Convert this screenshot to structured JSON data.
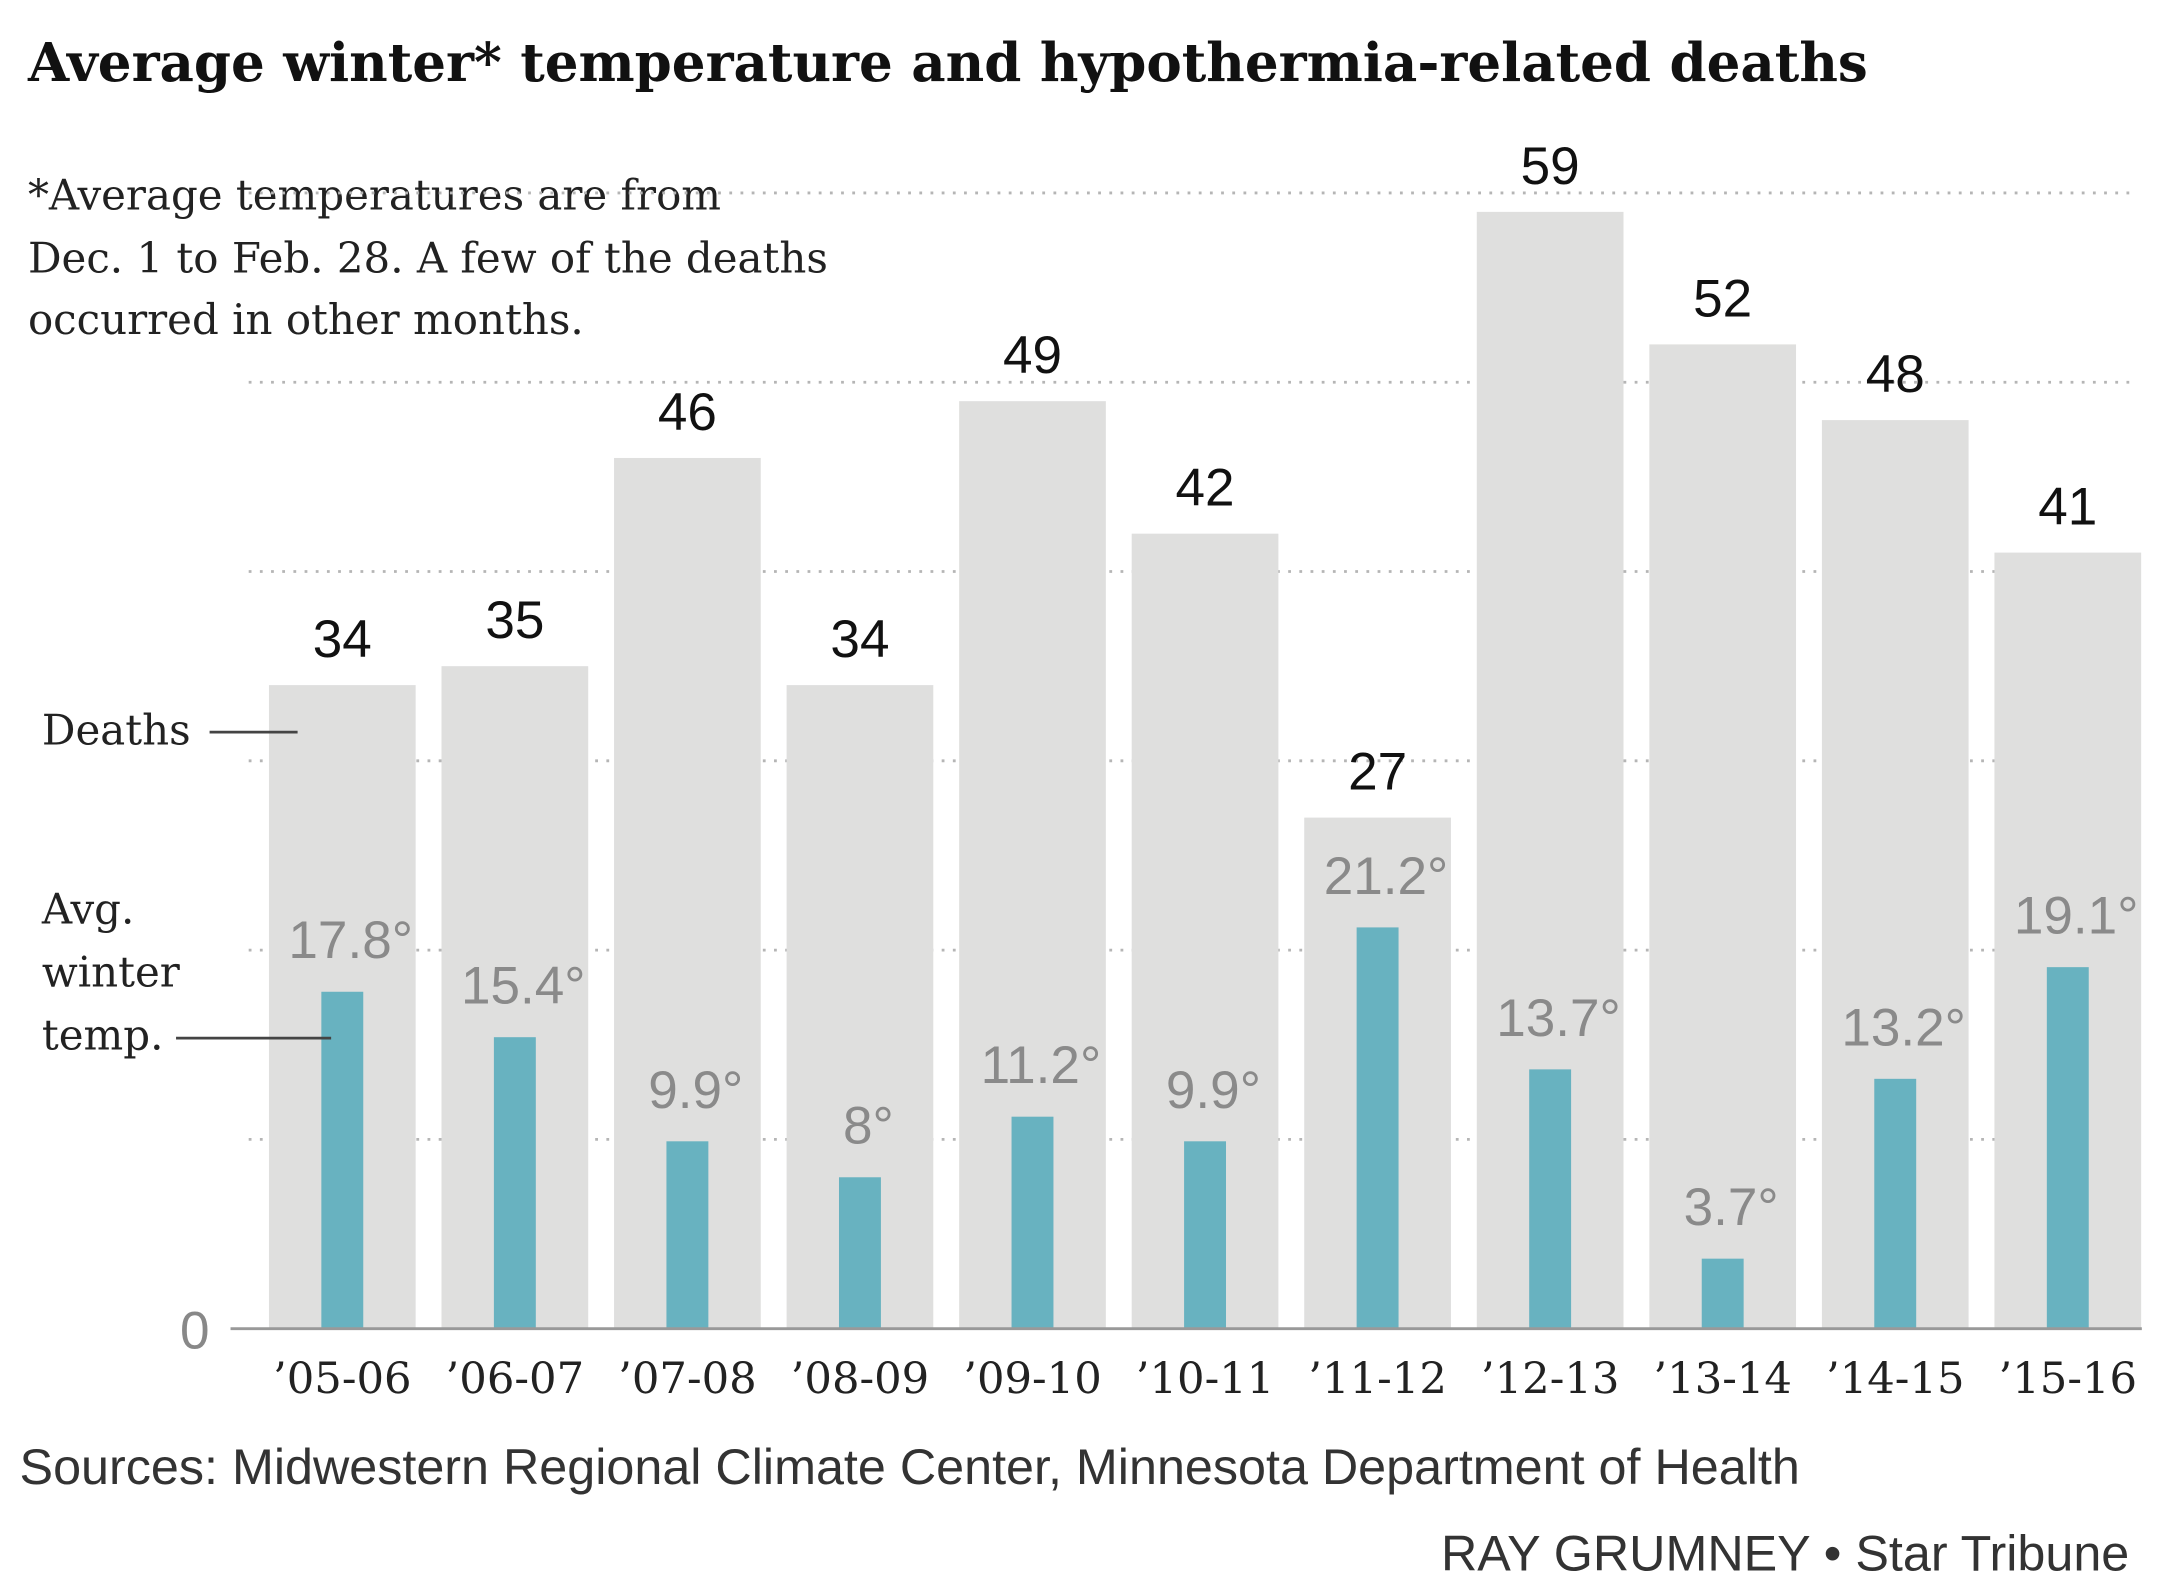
{
  "chart_data": {
    "type": "bar",
    "title": "Average winter* temperature and hypothermia-related deaths",
    "footnote": [
      "*Average temperatures are from",
      "Dec. 1 to Feb. 28. A few of the deaths",
      "occurred in other months."
    ],
    "source": "Sources: Midwestern Regional Climate Center, Minnesota Department of Health",
    "credit": "RAY GRUMNEY • Star Tribune",
    "categories": [
      "’05-06",
      "’06-07",
      "’07-08",
      "’08-09",
      "’09-10",
      "’10-11",
      "’11-12",
      "’12-13",
      "’13-14",
      "’14-15",
      "’15-16"
    ],
    "series": [
      {
        "name": "Deaths",
        "color": "#dfdfde",
        "label_color": "#111111",
        "values": [
          34,
          35,
          46,
          34,
          49,
          42,
          27,
          59,
          52,
          48,
          41
        ]
      },
      {
        "name": "Avg. winter temp.",
        "color": "#68b2c0",
        "label_color": "#8a8a8a",
        "values": [
          17.8,
          15.4,
          9.9,
          8,
          11.2,
          9.9,
          21.2,
          13.7,
          3.7,
          13.2,
          19.1
        ],
        "value_labels": [
          "17.8°",
          "15.4°",
          "9.9°",
          "8°",
          "11.2°",
          "9.9°",
          "21.2°",
          "13.7°",
          "3.7°",
          "13.2°",
          "19.1°"
        ]
      }
    ],
    "ylim": [
      0,
      62
    ],
    "yticks": [
      0
    ],
    "ygrid": [
      10,
      20,
      30,
      40,
      50,
      60
    ],
    "grid": true
  }
}
